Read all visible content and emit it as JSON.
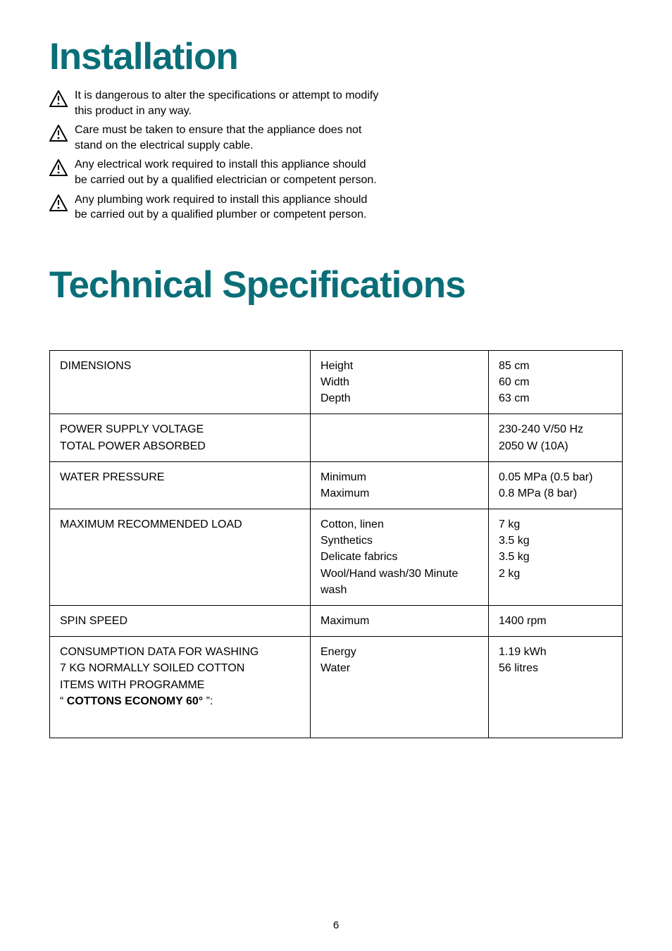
{
  "headings": {
    "installation": "Installation",
    "tech_spec": "Technical Specifications"
  },
  "warnings": [
    "It is dangerous to alter the specifications or attempt to modify this product in any way.",
    "Care must be taken to ensure that the appliance does not stand on the electrical supply cable.",
    "Any electrical work required to install this appliance should be carried out by a qualified electrician or competent person.",
    "Any plumbing work required to install this appliance should be carried out by a qualified plumber or competent person."
  ],
  "table": {
    "rows": [
      {
        "label": "DIMENSIONS",
        "mid": "Height\nWidth\nDepth",
        "val": "85 cm\n60 cm\n63 cm"
      },
      {
        "label": "POWER SUPPLY VOLTAGE\nTOTAL POWER ABSORBED",
        "mid": "",
        "val": "230-240 V/50 Hz\n2050 W (10A)"
      },
      {
        "label": "WATER PRESSURE",
        "mid": "Minimum\nMaximum",
        "val": "0.05 MPa (0.5 bar)\n0.8   MPa (8  bar)"
      },
      {
        "label": "MAXIMUM RECOMMENDED LOAD",
        "mid": "Cotton, linen\nSynthetics\nDelicate fabrics\nWool/Hand wash/30 Minute wash",
        "val": "7    kg\n3.5 kg\n3.5 kg\n2    kg"
      },
      {
        "label": "SPIN SPEED",
        "mid": "Maximum",
        "val": "1400 rpm"
      },
      {
        "label_html": "CONSUMPTION DATA FOR WASHING\n7 KG NORMALLY SOILED COTTON\nITEMS WITH PROGRAMME\n“ <b>COTTONS ECONOMY 60°</b> ”:",
        "mid": "Energy\nWater",
        "val": "1.19 kWh\n56 litres"
      }
    ]
  },
  "page_number": "6",
  "style": {
    "heading_color": "#0a6e78",
    "text_color": "#000000",
    "border_color": "#000000",
    "background": "#ffffff"
  }
}
